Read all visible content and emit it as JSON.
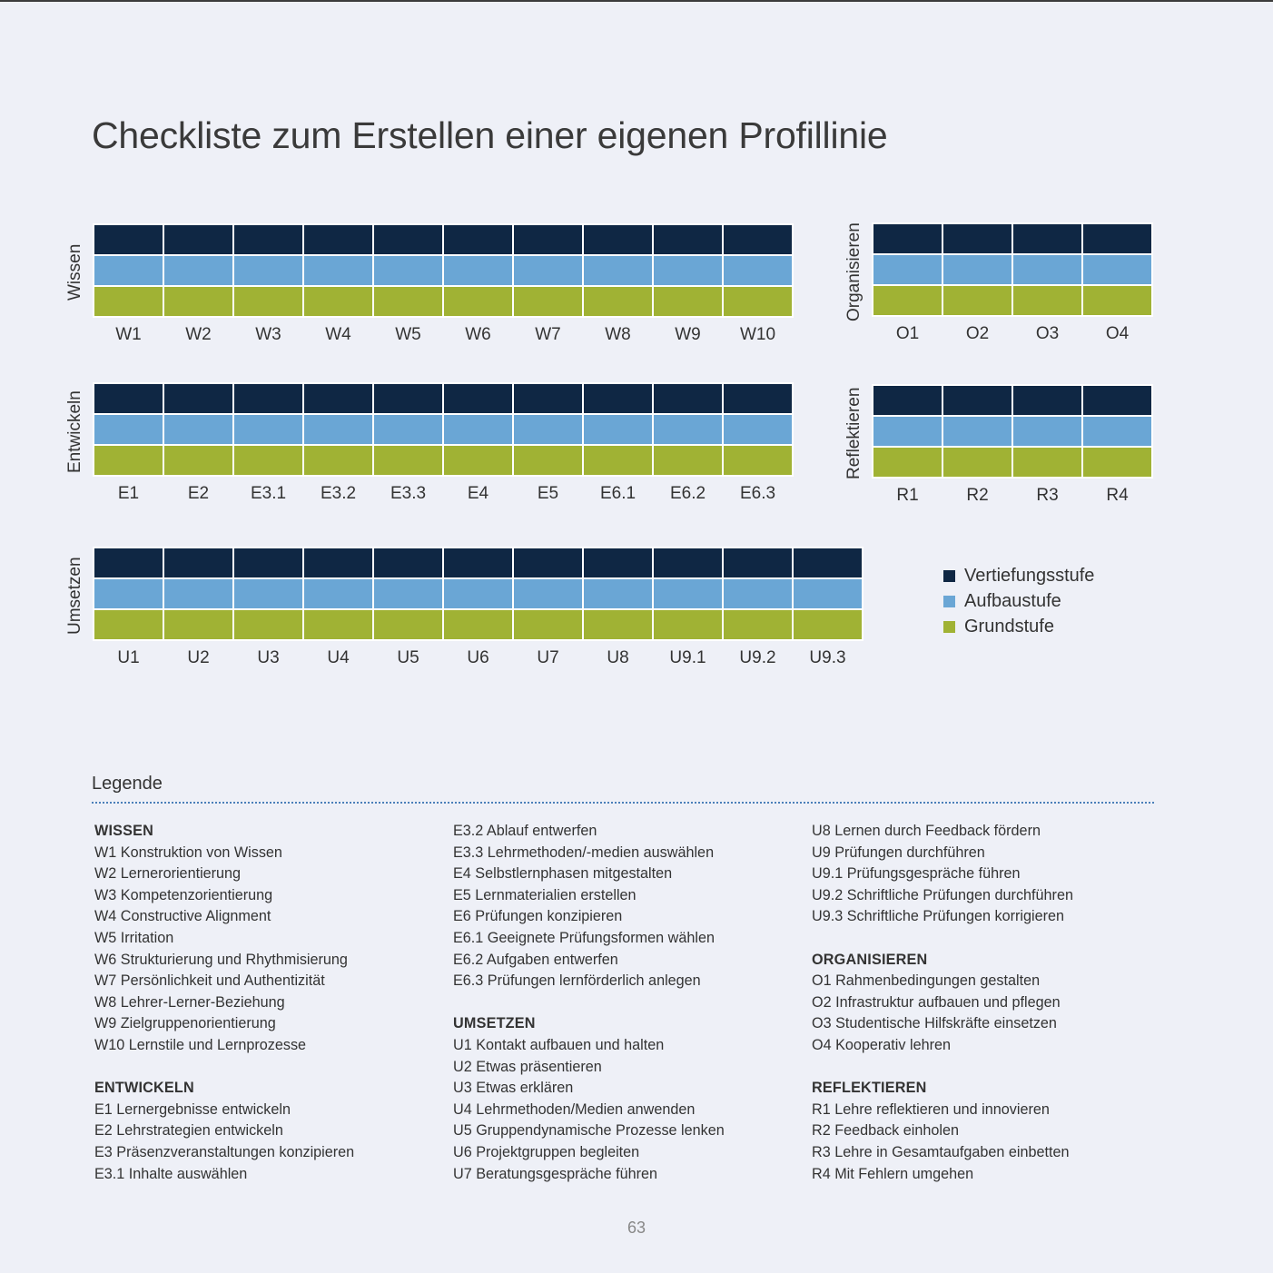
{
  "title": "Checkliste zum Erstellen einer eigenen Profillinie",
  "colors": {
    "vertiefung": "#0f2744",
    "aufbau": "#6aa6d5",
    "grund": "#a0b234"
  },
  "grids": [
    {
      "name": "Wissen",
      "labels": [
        "W1",
        "W2",
        "W3",
        "W4",
        "W5",
        "W6",
        "W7",
        "W8",
        "W9",
        "W10"
      ]
    },
    {
      "name": "Entwickeln",
      "labels": [
        "E1",
        "E2",
        "E3.1",
        "E3.2",
        "E3.3",
        "E4",
        "E5",
        "E6.1",
        "E6.2",
        "E6.3"
      ]
    },
    {
      "name": "Umsetzen",
      "labels": [
        "U1",
        "U2",
        "U3",
        "U4",
        "U5",
        "U6",
        "U7",
        "U8",
        "U9.1",
        "U9.2",
        "U9.3"
      ]
    },
    {
      "name": "Organisieren",
      "labels": [
        "O1",
        "O2",
        "O3",
        "O4"
      ]
    },
    {
      "name": "Reflektieren",
      "labels": [
        "R1",
        "R2",
        "R3",
        "R4"
      ]
    }
  ],
  "legend_key": [
    "Vertiefungsstufe",
    "Aufbaustufe",
    "Grundstufe"
  ],
  "legende": {
    "title": "Legende",
    "col1": {
      "wissen_head": "WISSEN",
      "wissen": [
        "W1 Konstruktion von Wissen",
        "W2 Lernerorientierung",
        "W3 Kompetenzorientierung",
        "W4 Constructive Alignment",
        "W5 Irritation",
        "W6 Strukturierung und Rhythmisierung",
        "W7 Persönlichkeit und Authentizität",
        "W8 Lehrer-Lerner-Beziehung",
        "W9 Zielgruppenorientierung",
        "W10 Lernstile und Lernprozesse"
      ],
      "entwickeln_head": "ENTWICKELN",
      "entwickeln": [
        "E1 Lernergebnisse entwickeln",
        "E2 Lehrstrategien entwickeln",
        "E3 Präsenzveranstaltungen konzipieren",
        "E3.1 Inhalte auswählen"
      ]
    },
    "col2": {
      "entwickeln_cont": [
        "E3.2 Ablauf entwerfen",
        "E3.3 Lehrmethoden/-medien auswählen",
        "E4 Selbstlernphasen mitgestalten",
        "E5 Lernmaterialien erstellen",
        "E6 Prüfungen konzipieren",
        "E6.1 Geeignete Prüfungsformen wählen",
        "E6.2 Aufgaben entwerfen",
        "E6.3 Prüfungen lernförderlich anlegen"
      ],
      "umsetzen_head": "UMSETZEN",
      "umsetzen": [
        "U1 Kontakt aufbauen und halten",
        "U2 Etwas präsentieren",
        "U3 Etwas erklären",
        "U4 Lehrmethoden/Medien anwenden",
        "U5 Gruppendynamische Prozesse lenken",
        "U6 Projektgruppen begleiten",
        "U7 Beratungsgespräche führen"
      ]
    },
    "col3": {
      "umsetzen_cont": [
        "U8 Lernen durch Feedback fördern",
        "U9 Prüfungen durchführen",
        "U9.1 Prüfungsgespräche führen",
        "U9.2 Schriftliche Prüfungen durchführen",
        "U9.3 Schriftliche Prüfungen korrigieren"
      ],
      "organisieren_head": "ORGANISIEREN",
      "organisieren": [
        "O1 Rahmenbedingungen gestalten",
        "O2 Infrastruktur aufbauen und pflegen",
        "O3 Studentische Hilfskräfte einsetzen",
        "O4 Kooperativ lehren"
      ],
      "reflektieren_head": "REFLEKTIEREN",
      "reflektieren": [
        "R1 Lehre reflektieren und innovieren",
        "R2 Feedback einholen",
        "R3 Lehre in Gesamtaufgaben einbetten",
        "R4 Mit Fehlern umgehen"
      ]
    }
  },
  "page_number": "63"
}
